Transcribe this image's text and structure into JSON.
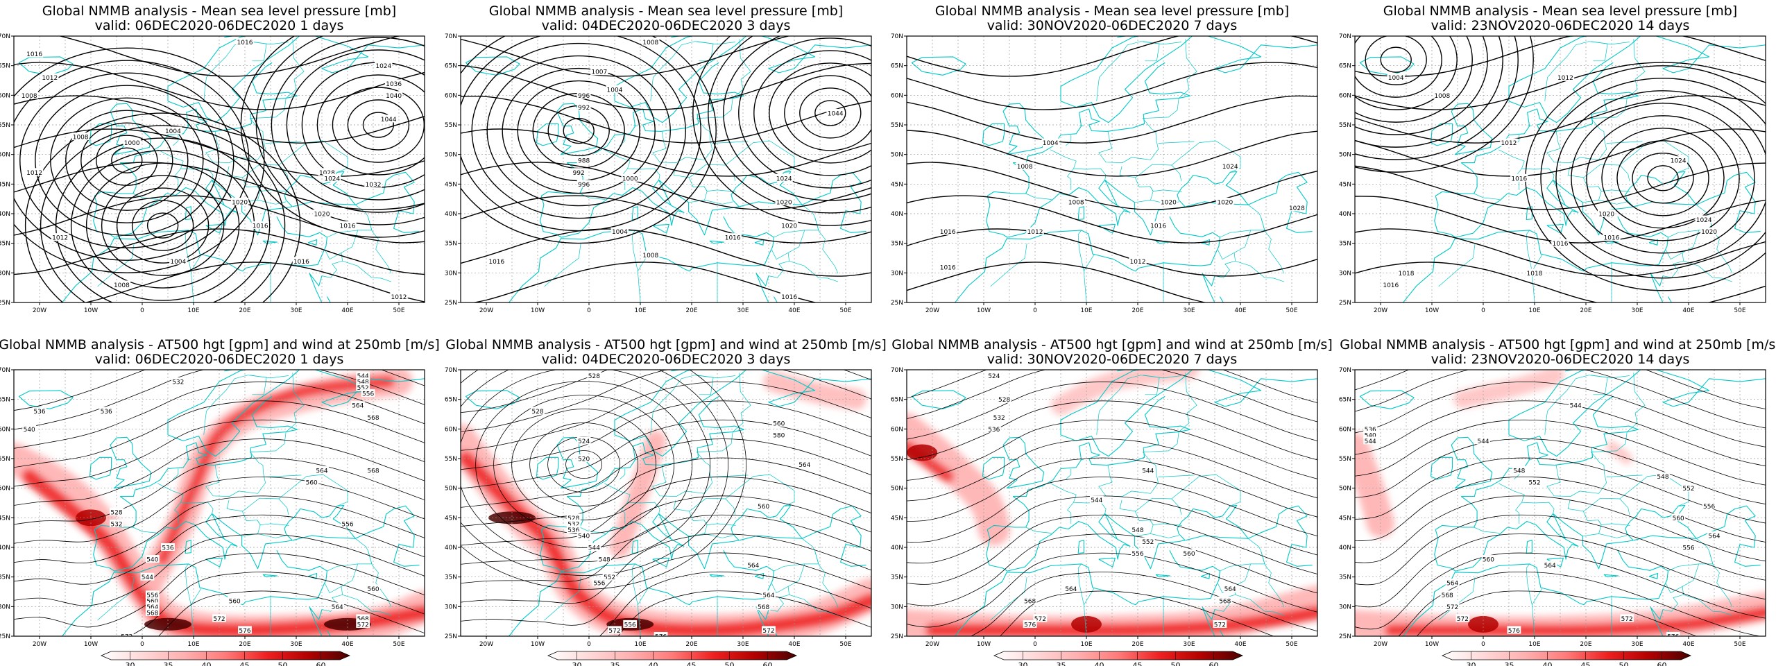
{
  "colors": {
    "coast": "#00c8c8",
    "contour": "#000000",
    "grid": "#9a9a9a",
    "jet_scale": [
      "#ffffff",
      "#ffd8d8",
      "#ffb0b0",
      "#ff7a7a",
      "#ee2020",
      "#b30000",
      "#4a0000"
    ]
  },
  "axes": {
    "x_ticks": [
      "20W",
      "10W",
      "0",
      "10E",
      "20E",
      "30E",
      "40E",
      "50E"
    ],
    "y_ticks": [
      "70N",
      "65N",
      "60N",
      "55N",
      "50N",
      "45N",
      "40N",
      "35N",
      "30N",
      "25N"
    ]
  },
  "colorbar": {
    "ticks": [
      "30",
      "35",
      "40",
      "45",
      "50",
      "60"
    ]
  },
  "chart_data": [
    {
      "type": "contour",
      "title": "Global NMMB analysis - Mean sea level pressure [mb]",
      "subtitle": "valid: 06DEC2020-06DEC2020   1 days",
      "field": "mslp",
      "xlim": [
        -25,
        55
      ],
      "ylim": [
        25,
        70
      ],
      "lows": [
        {
          "lon": -3,
          "lat": 49,
          "value": 996
        },
        {
          "lon": 4,
          "lat": 38,
          "value": 1000
        }
      ],
      "highs": [
        {
          "lon": 46,
          "lat": 55,
          "value": 1044
        }
      ],
      "contour_labels": [
        {
          "text": "1016",
          "lon": -21,
          "lat": 67
        },
        {
          "text": "1012",
          "lon": -18,
          "lat": 63
        },
        {
          "text": "1008",
          "lon": -22,
          "lat": 60
        },
        {
          "text": "1008",
          "lon": -12,
          "lat": 53
        },
        {
          "text": "1000",
          "lon": -2,
          "lat": 52
        },
        {
          "text": "1004",
          "lon": 6,
          "lat": 54
        },
        {
          "text": "1012",
          "lon": -21,
          "lat": 47
        },
        {
          "text": "1016",
          "lon": 20,
          "lat": 69
        },
        {
          "text": "1024",
          "lon": 47,
          "lat": 65
        },
        {
          "text": "1036",
          "lon": 49,
          "lat": 62
        },
        {
          "text": "1040",
          "lon": 49,
          "lat": 60
        },
        {
          "text": "1044",
          "lon": 48,
          "lat": 56
        },
        {
          "text": "1028",
          "lon": 36,
          "lat": 47
        },
        {
          "text": "1024",
          "lon": 37,
          "lat": 46
        },
        {
          "text": "1032",
          "lon": 45,
          "lat": 45
        },
        {
          "text": "1020",
          "lon": 19,
          "lat": 42
        },
        {
          "text": "1020",
          "lon": 35,
          "lat": 40
        },
        {
          "text": "1016",
          "lon": 23,
          "lat": 38
        },
        {
          "text": "1012",
          "lon": -16,
          "lat": 36
        },
        {
          "text": "1004",
          "lon": 7,
          "lat": 32
        },
        {
          "text": "1008",
          "lon": -4,
          "lat": 28
        },
        {
          "text": "1016",
          "lon": 31,
          "lat": 32
        },
        {
          "text": "1016",
          "lon": 40,
          "lat": 38
        },
        {
          "text": "1012",
          "lon": 50,
          "lat": 26
        }
      ]
    },
    {
      "type": "contour",
      "title": "Global NMMB analysis - Mean sea level pressure [mb]",
      "subtitle": "valid: 04DEC2020-06DEC2020   3 days",
      "field": "mslp",
      "xlim": [
        -25,
        55
      ],
      "ylim": [
        25,
        70
      ],
      "lows": [
        {
          "lon": -2,
          "lat": 54,
          "value": 992
        }
      ],
      "highs": [
        {
          "lon": 47,
          "lat": 57,
          "value": 1044
        }
      ],
      "contour_labels": [
        {
          "text": "1008",
          "lon": 12,
          "lat": 69
        },
        {
          "text": "1007",
          "lon": 2,
          "lat": 64
        },
        {
          "text": "996",
          "lon": -1,
          "lat": 60
        },
        {
          "text": "992",
          "lon": -1,
          "lat": 58
        },
        {
          "text": "1004",
          "lon": 5,
          "lat": 61
        },
        {
          "text": "988",
          "lon": -1,
          "lat": 49
        },
        {
          "text": "992",
          "lon": -2,
          "lat": 47
        },
        {
          "text": "996",
          "lon": -1,
          "lat": 45
        },
        {
          "text": "1000",
          "lon": 8,
          "lat": 46
        },
        {
          "text": "1004",
          "lon": 6,
          "lat": 37
        },
        {
          "text": "1008",
          "lon": 12,
          "lat": 33
        },
        {
          "text": "1016",
          "lon": -18,
          "lat": 32
        },
        {
          "text": "1016",
          "lon": 28,
          "lat": 36
        },
        {
          "text": "1020",
          "lon": 39,
          "lat": 38
        },
        {
          "text": "1020",
          "lon": 38,
          "lat": 42
        },
        {
          "text": "1024",
          "lon": 38,
          "lat": 46
        },
        {
          "text": "1044",
          "lon": 48,
          "lat": 57
        },
        {
          "text": "1016",
          "lon": 39,
          "lat": 26
        }
      ]
    },
    {
      "type": "contour",
      "title": "Global NMMB analysis - Mean sea level pressure [mb]",
      "subtitle": "valid: 30NOV2020-06DEC2020   7 days",
      "field": "mslp",
      "xlim": [
        -25,
        55
      ],
      "ylim": [
        25,
        70
      ],
      "lows": [],
      "highs": [],
      "contour_labels": [
        {
          "text": "1004",
          "lon": 3,
          "lat": 52
        },
        {
          "text": "1008",
          "lon": -2,
          "lat": 48
        },
        {
          "text": "1008",
          "lon": 8,
          "lat": 42
        },
        {
          "text": "1016",
          "lon": -17,
          "lat": 37
        },
        {
          "text": "1016",
          "lon": -17,
          "lat": 31
        },
        {
          "text": "1012",
          "lon": 0,
          "lat": 37
        },
        {
          "text": "1012",
          "lon": 20,
          "lat": 32
        },
        {
          "text": "1016",
          "lon": 24,
          "lat": 38
        },
        {
          "text": "1020",
          "lon": 26,
          "lat": 42
        },
        {
          "text": "1020",
          "lon": 37,
          "lat": 42
        },
        {
          "text": "1024",
          "lon": 38,
          "lat": 48
        },
        {
          "text": "1028",
          "lon": 51,
          "lat": 41
        }
      ]
    },
    {
      "type": "contour",
      "title": "Global NMMB analysis - Mean sea level pressure [mb]",
      "subtitle": "valid: 23NOV2020-06DEC2020   14 days",
      "field": "mslp",
      "xlim": [
        -25,
        55
      ],
      "ylim": [
        25,
        70
      ],
      "lows": [
        {
          "lon": -17,
          "lat": 66,
          "value": 1004
        }
      ],
      "highs": [
        {
          "lon": 35,
          "lat": 46,
          "value": 1024
        }
      ],
      "contour_labels": [
        {
          "text": "1004",
          "lon": -17,
          "lat": 63
        },
        {
          "text": "1008",
          "lon": -8,
          "lat": 60
        },
        {
          "text": "1012",
          "lon": 16,
          "lat": 63
        },
        {
          "text": "1012",
          "lon": 5,
          "lat": 52
        },
        {
          "text": "1016",
          "lon": 7,
          "lat": 46
        },
        {
          "text": "1020",
          "lon": 24,
          "lat": 40
        },
        {
          "text": "1024",
          "lon": 38,
          "lat": 49
        },
        {
          "text": "1024",
          "lon": 43,
          "lat": 39
        },
        {
          "text": "1020",
          "lon": 44,
          "lat": 37
        },
        {
          "text": "1016",
          "lon": 15,
          "lat": 35
        },
        {
          "text": "1016",
          "lon": 25,
          "lat": 36
        },
        {
          "text": "1018",
          "lon": -15,
          "lat": 30
        },
        {
          "text": "1016",
          "lon": -18,
          "lat": 28
        },
        {
          "text": "1018",
          "lon": 10,
          "lat": 30
        }
      ]
    },
    {
      "type": "contour",
      "title": "Global NMMB analysis - AT500 hgt [gpm] and wind at 250mb [m/s]",
      "subtitle": "valid: 06DEC2020-06DEC2020   1 days",
      "field": "z500_jet",
      "xlim": [
        -25,
        55
      ],
      "ylim": [
        25,
        70
      ],
      "jet_cores": [
        {
          "lon": -10,
          "lat": 45,
          "speed": 50
        },
        {
          "lon": 5,
          "lat": 27,
          "speed": 60
        },
        {
          "lon": 40,
          "lat": 27,
          "speed": 60
        }
      ],
      "lows": [],
      "highs": [],
      "contour_labels": [
        {
          "text": "532",
          "lon": 7,
          "lat": 68
        },
        {
          "text": "536",
          "lon": -20,
          "lat": 63
        },
        {
          "text": "540",
          "lon": -22,
          "lat": 60
        },
        {
          "text": "536",
          "lon": -7,
          "lat": 63
        },
        {
          "text": "544",
          "lon": 43,
          "lat": 69
        },
        {
          "text": "548",
          "lon": 43,
          "lat": 68
        },
        {
          "text": "552",
          "lon": 43,
          "lat": 67
        },
        {
          "text": "556",
          "lon": 44,
          "lat": 66
        },
        {
          "text": "564",
          "lon": 42,
          "lat": 64
        },
        {
          "text": "568",
          "lon": 45,
          "lat": 62
        },
        {
          "text": "564",
          "lon": 35,
          "lat": 53
        },
        {
          "text": "568",
          "lon": 45,
          "lat": 53
        },
        {
          "text": "560",
          "lon": 33,
          "lat": 51
        },
        {
          "text": "556",
          "lon": 40,
          "lat": 44
        },
        {
          "text": "528",
          "lon": -5,
          "lat": 46
        },
        {
          "text": "532",
          "lon": -5,
          "lat": 44
        },
        {
          "text": "536",
          "lon": 5,
          "lat": 40
        },
        {
          "text": "540",
          "lon": 2,
          "lat": 38
        },
        {
          "text": "544",
          "lon": 1,
          "lat": 35
        },
        {
          "text": "560",
          "lon": 45,
          "lat": 33
        },
        {
          "text": "560",
          "lon": 18,
          "lat": 31
        },
        {
          "text": "564",
          "lon": 38,
          "lat": 30
        },
        {
          "text": "568",
          "lon": 43,
          "lat": 28
        },
        {
          "text": "572",
          "lon": 43,
          "lat": 27
        },
        {
          "text": "576",
          "lon": 20,
          "lat": 26
        },
        {
          "text": "572",
          "lon": 15,
          "lat": 28
        },
        {
          "text": "572",
          "lon": -3,
          "lat": 25
        },
        {
          "text": "560",
          "lon": 2,
          "lat": 31
        },
        {
          "text": "564",
          "lon": 2,
          "lat": 30
        },
        {
          "text": "568",
          "lon": 2,
          "lat": 29
        },
        {
          "text": "556",
          "lon": 2,
          "lat": 32
        }
      ]
    },
    {
      "type": "contour",
      "title": "Global NMMB analysis - AT500 hgt [gpm] and wind at 250mb [m/s]",
      "subtitle": "valid: 04DEC2020-06DEC2020   3 days",
      "field": "z500_jet",
      "xlim": [
        -25,
        55
      ],
      "ylim": [
        25,
        70
      ],
      "jet_cores": [
        {
          "lon": -15,
          "lat": 45,
          "speed": 60
        },
        {
          "lon": 8,
          "lat": 27,
          "speed": 60
        }
      ],
      "lows": [
        {
          "lon": -1,
          "lat": 54,
          "value": 520
        }
      ],
      "highs": [],
      "contour_labels": [
        {
          "text": "528",
          "lon": 1,
          "lat": 69
        },
        {
          "text": "528",
          "lon": -10,
          "lat": 63
        },
        {
          "text": "524",
          "lon": -1,
          "lat": 58
        },
        {
          "text": "520",
          "lon": -1,
          "lat": 55
        },
        {
          "text": "528",
          "lon": -3,
          "lat": 45
        },
        {
          "text": "532",
          "lon": -3,
          "lat": 44
        },
        {
          "text": "536",
          "lon": -3,
          "lat": 43
        },
        {
          "text": "540",
          "lon": -1,
          "lat": 42
        },
        {
          "text": "544",
          "lon": 1,
          "lat": 40
        },
        {
          "text": "548",
          "lon": 3,
          "lat": 38
        },
        {
          "text": "552",
          "lon": 4,
          "lat": 35
        },
        {
          "text": "556",
          "lon": 2,
          "lat": 34
        },
        {
          "text": "560",
          "lon": 37,
          "lat": 61
        },
        {
          "text": "564",
          "lon": 42,
          "lat": 54
        },
        {
          "text": "580",
          "lon": 37,
          "lat": 59
        },
        {
          "text": "560",
          "lon": 34,
          "lat": 47
        },
        {
          "text": "564",
          "lon": 32,
          "lat": 37
        },
        {
          "text": "564",
          "lon": 35,
          "lat": 32
        },
        {
          "text": "568",
          "lon": 34,
          "lat": 30
        },
        {
          "text": "572",
          "lon": 35,
          "lat": 26
        },
        {
          "text": "576",
          "lon": 14,
          "lat": 25
        },
        {
          "text": "572",
          "lon": 5,
          "lat": 26
        },
        {
          "text": "556",
          "lon": 8,
          "lat": 27
        }
      ]
    },
    {
      "type": "contour",
      "title": "Global NMMB analysis - AT500 hgt [gpm] and wind at 250mb [m/s]",
      "subtitle": "valid: 30NOV2020-06DEC2020   7 days",
      "field": "z500_jet",
      "xlim": [
        -25,
        55
      ],
      "ylim": [
        25,
        70
      ],
      "jet_cores": [
        {
          "lon": -22,
          "lat": 56,
          "speed": 50
        },
        {
          "lon": 10,
          "lat": 27,
          "speed": 50
        }
      ],
      "lows": [],
      "highs": [],
      "contour_labels": [
        {
          "text": "524",
          "lon": -8,
          "lat": 69
        },
        {
          "text": "528",
          "lon": -6,
          "lat": 65
        },
        {
          "text": "532",
          "lon": -7,
          "lat": 62
        },
        {
          "text": "536",
          "lon": -8,
          "lat": 60
        },
        {
          "text": "544",
          "lon": 22,
          "lat": 53
        },
        {
          "text": "544",
          "lon": 12,
          "lat": 48
        },
        {
          "text": "548",
          "lon": 20,
          "lat": 43
        },
        {
          "text": "552",
          "lon": 22,
          "lat": 41
        },
        {
          "text": "556",
          "lon": 20,
          "lat": 39
        },
        {
          "text": "560",
          "lon": 30,
          "lat": 39
        },
        {
          "text": "564",
          "lon": 7,
          "lat": 33
        },
        {
          "text": "564",
          "lon": 38,
          "lat": 33
        },
        {
          "text": "568",
          "lon": 37,
          "lat": 31
        },
        {
          "text": "568",
          "lon": -1,
          "lat": 31
        },
        {
          "text": "572",
          "lon": 1,
          "lat": 28
        },
        {
          "text": "576",
          "lon": -1,
          "lat": 27
        },
        {
          "text": "572",
          "lon": 36,
          "lat": 27
        }
      ]
    },
    {
      "type": "contour",
      "title": "Global NMMB analysis - AT500 hgt [gpm] and wind at 250mb [m/s]",
      "subtitle": "valid: 23NOV2020-06DEC2020   14 days",
      "field": "z500_jet",
      "xlim": [
        -25,
        55
      ],
      "ylim": [
        25,
        70
      ],
      "jet_cores": [
        {
          "lon": 0,
          "lat": 27,
          "speed": 50
        }
      ],
      "lows": [],
      "highs": [],
      "contour_labels": [
        {
          "text": "544",
          "lon": 18,
          "lat": 64
        },
        {
          "text": "536",
          "lon": -22,
          "lat": 60
        },
        {
          "text": "540",
          "lon": -22,
          "lat": 59
        },
        {
          "text": "544",
          "lon": -22,
          "lat": 58
        },
        {
          "text": "544",
          "lon": 0,
          "lat": 58
        },
        {
          "text": "548",
          "lon": 7,
          "lat": 53
        },
        {
          "text": "552",
          "lon": 10,
          "lat": 51
        },
        {
          "text": "548",
          "lon": 35,
          "lat": 52
        },
        {
          "text": "552",
          "lon": 40,
          "lat": 50
        },
        {
          "text": "556",
          "lon": 44,
          "lat": 47
        },
        {
          "text": "560",
          "lon": 38,
          "lat": 45
        },
        {
          "text": "556",
          "lon": 40,
          "lat": 40
        },
        {
          "text": "560",
          "lon": 1,
          "lat": 38
        },
        {
          "text": "564",
          "lon": 13,
          "lat": 37
        },
        {
          "text": "564",
          "lon": -6,
          "lat": 34
        },
        {
          "text": "568",
          "lon": -7,
          "lat": 32
        },
        {
          "text": "572",
          "lon": -6,
          "lat": 30
        },
        {
          "text": "572",
          "lon": -4,
          "lat": 28
        },
        {
          "text": "576",
          "lon": 6,
          "lat": 26
        },
        {
          "text": "572",
          "lon": 28,
          "lat": 28
        },
        {
          "text": "576",
          "lon": 37,
          "lat": 25
        },
        {
          "text": "564",
          "lon": 45,
          "lat": 42
        }
      ]
    }
  ]
}
